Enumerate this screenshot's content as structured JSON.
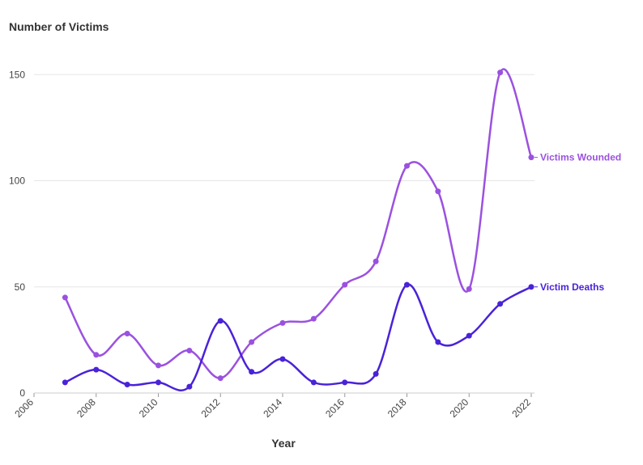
{
  "chart_data": {
    "type": "line",
    "title": "",
    "ylabel": "Number of Victims",
    "xlabel": "Year",
    "x": [
      2007,
      2008,
      2009,
      2010,
      2011,
      2012,
      2013,
      2014,
      2015,
      2016,
      2017,
      2018,
      2019,
      2020,
      2021,
      2022
    ],
    "series": [
      {
        "name": "Victims Wounded",
        "color": "#9b51e0",
        "values": [
          45,
          18,
          28,
          13,
          20,
          7,
          24,
          33,
          35,
          51,
          62,
          107,
          95,
          49,
          151,
          111
        ]
      },
      {
        "name": "Victim Deaths",
        "color": "#4a22d8",
        "values": [
          5,
          11,
          4,
          5,
          3,
          34,
          10,
          16,
          5,
          5,
          9,
          51,
          24,
          27,
          42,
          50
        ]
      }
    ],
    "xlim": [
      2006,
      2022
    ],
    "ylim": [
      0,
      160
    ],
    "xticks": [
      "2006",
      "2008",
      "2010",
      "2012",
      "2014",
      "2016",
      "2018",
      "2020",
      "2022"
    ],
    "yticks": [
      "0",
      "50",
      "100",
      "150"
    ],
    "grid": "horizontal",
    "legend": "inline at line ends"
  }
}
